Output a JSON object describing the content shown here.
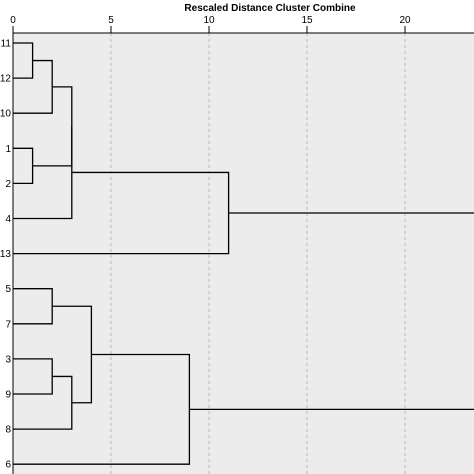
{
  "chart_data": {
    "type": "dendrogram",
    "title": "Rescaled Distance Cluster Combine",
    "axis": {
      "xlim": [
        0,
        25
      ],
      "ticks": [
        0,
        5,
        10,
        15,
        20,
        25
      ],
      "tick_labels": [
        "0",
        "5",
        "10",
        "15",
        "20",
        ""
      ],
      "grid": true,
      "grid_style": "dashed"
    },
    "leaves": [
      "11",
      "12",
      "10",
      "1",
      "2",
      "4",
      "13",
      "5",
      "7",
      "3",
      "9",
      "8",
      "6"
    ],
    "merges": [
      {
        "id": "a",
        "children": [
          "11",
          "12"
        ],
        "distance": 1.0
      },
      {
        "id": "b",
        "children": [
          "1",
          "2"
        ],
        "distance": 1.0
      },
      {
        "id": "c",
        "children": [
          "a",
          "10"
        ],
        "distance": 2.0
      },
      {
        "id": "d",
        "children": [
          "c",
          "b"
        ],
        "distance": 3.0
      },
      {
        "id": "e",
        "children": [
          "d",
          "4"
        ],
        "distance": 3.0
      },
      {
        "id": "f",
        "children": [
          "e",
          "13"
        ],
        "distance": 11.0
      },
      {
        "id": "g",
        "children": [
          "5",
          "7"
        ],
        "distance": 2.0
      },
      {
        "id": "h",
        "children": [
          "3",
          "9"
        ],
        "distance": 2.0
      },
      {
        "id": "i",
        "children": [
          "h",
          "8"
        ],
        "distance": 3.0
      },
      {
        "id": "j",
        "children": [
          "g",
          "i"
        ],
        "distance": 4.0
      },
      {
        "id": "k",
        "children": [
          "j",
          "6"
        ],
        "distance": 9.0
      },
      {
        "id": "root",
        "children": [
          "f",
          "k"
        ],
        "distance": 25.0
      }
    ],
    "colors": {
      "plot_background": "#ececec",
      "line": "#000000",
      "grid": "#b8b8b8"
    }
  }
}
